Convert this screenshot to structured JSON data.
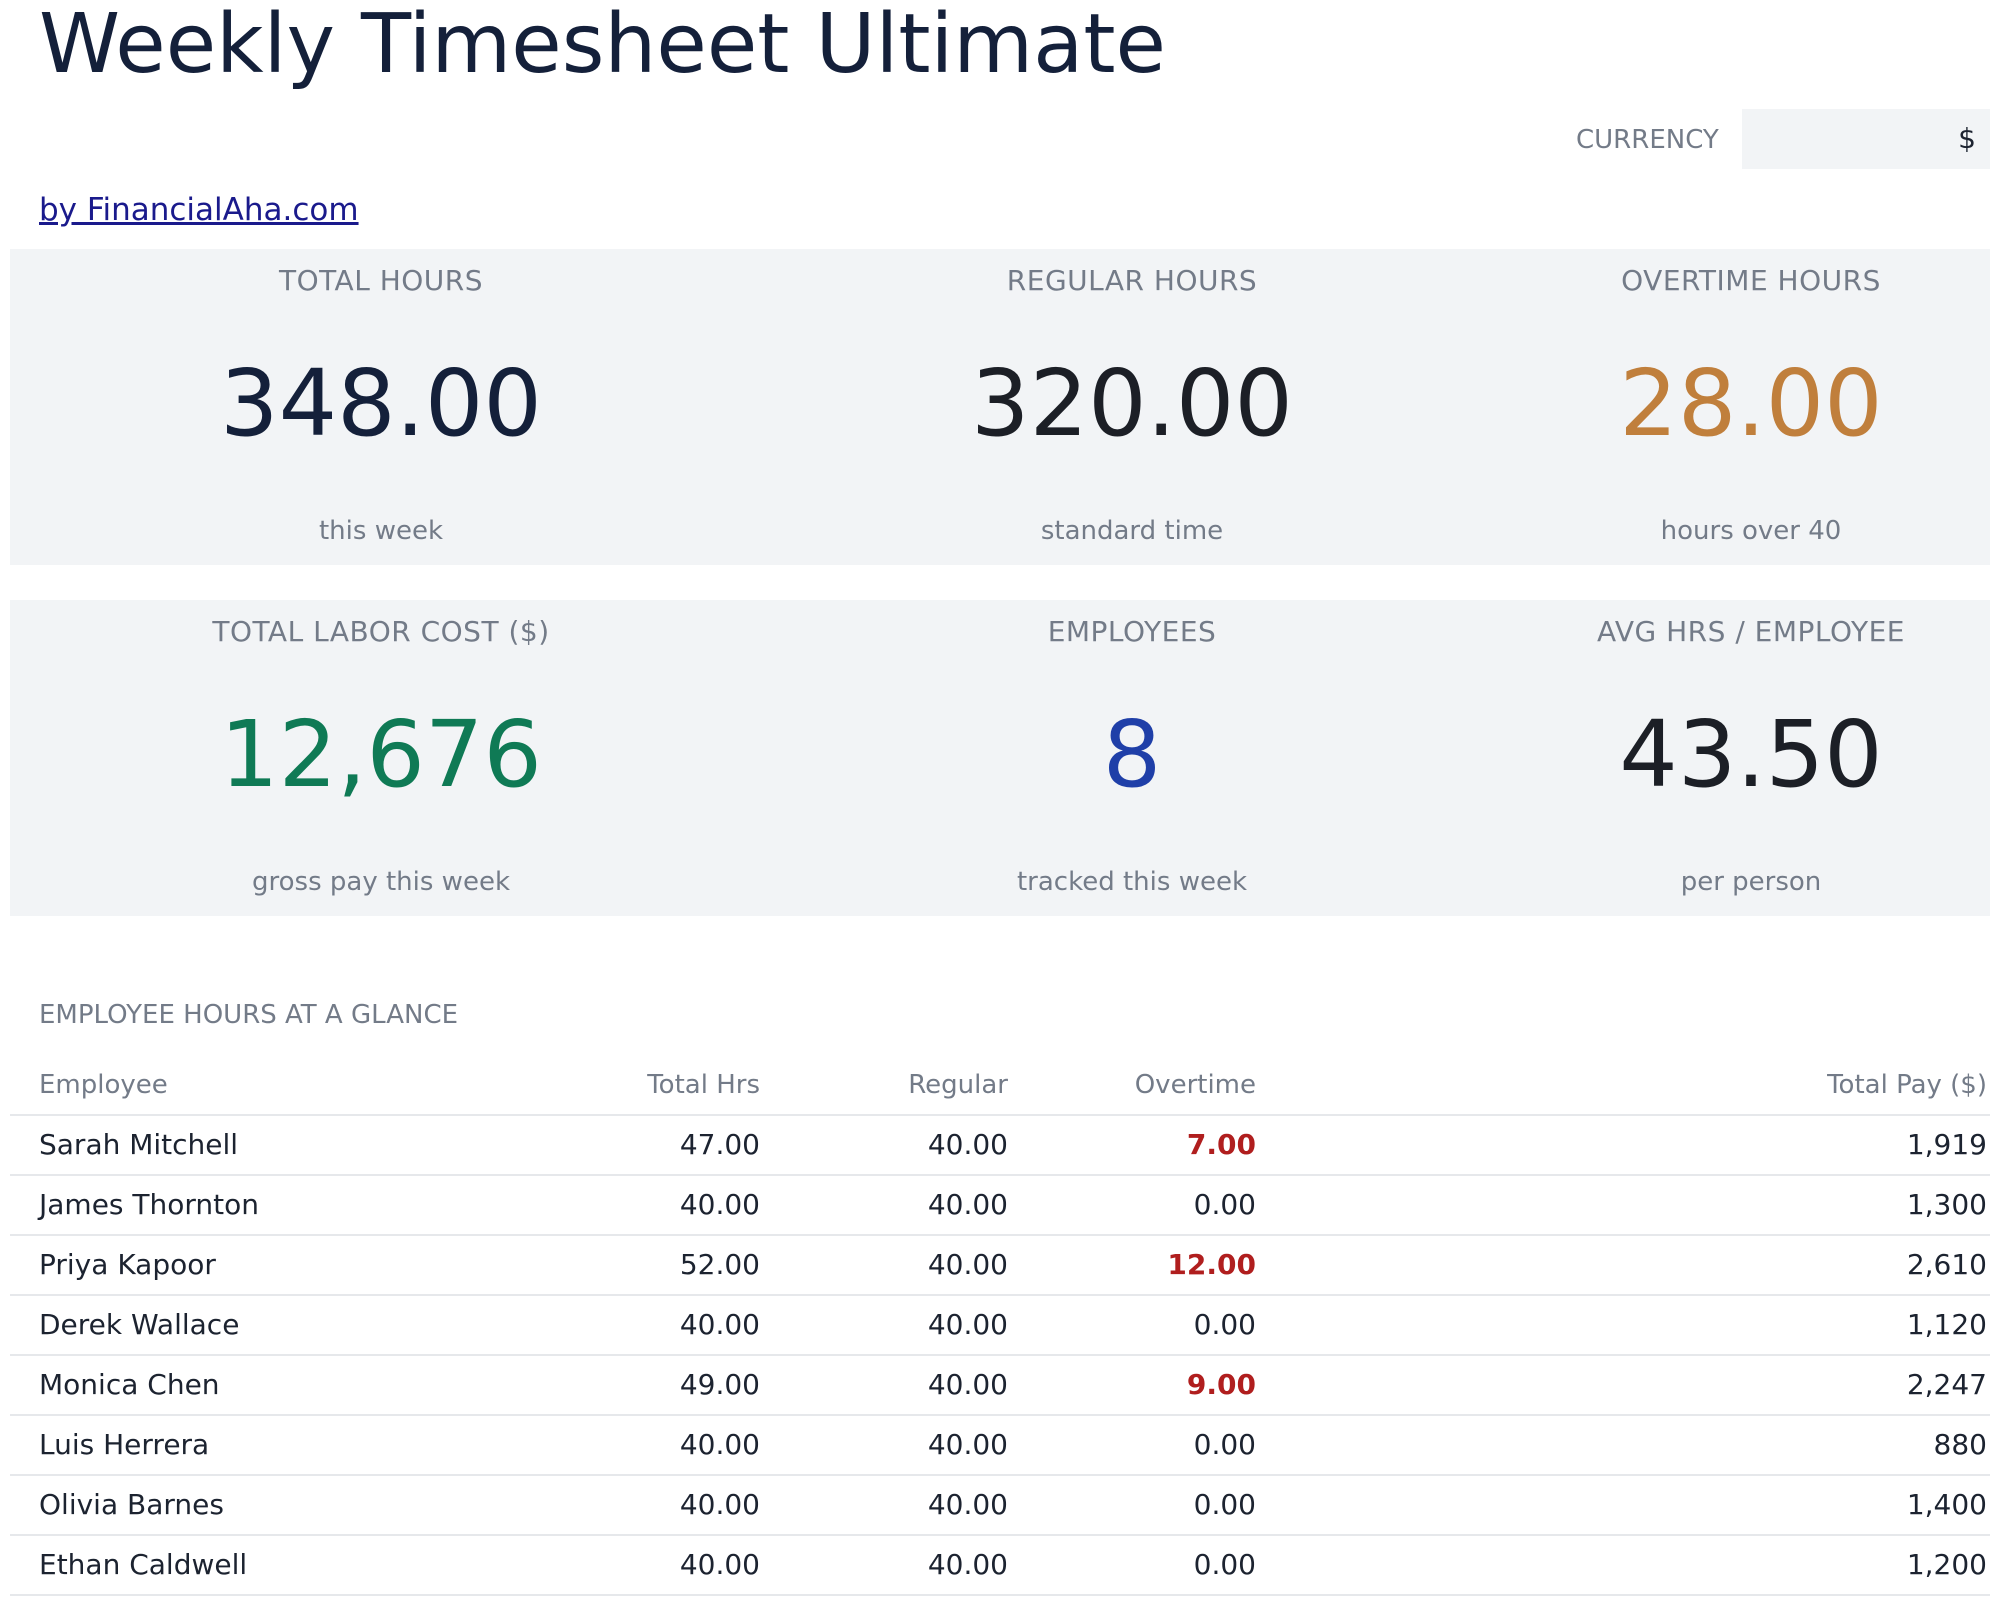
{
  "app": {
    "title": "Weekly Timesheet Ultimate",
    "byline": "by FinancialAha.com"
  },
  "currency": {
    "label": "CURRENCY",
    "value": "$"
  },
  "kpis": [
    {
      "label": "TOTAL HOURS",
      "value": "348.00",
      "sub": "this week",
      "color": "#14203a"
    },
    {
      "label": "REGULAR HOURS",
      "value": "320.00",
      "sub": "standard time",
      "color": "#1c1f26"
    },
    {
      "label": "OVERTIME HOURS",
      "value": "28.00",
      "sub": "hours over 40",
      "color": "#c07f3c"
    },
    {
      "label": "TOTAL LABOR COST ($)",
      "value": "12,676",
      "sub": "gross pay this week",
      "color": "#0f7a55"
    },
    {
      "label": "EMPLOYEES",
      "value": "8",
      "sub": "tracked this week",
      "color": "#1f3fa8"
    },
    {
      "label": "AVG HRS / EMPLOYEE",
      "value": "43.50",
      "sub": "per person",
      "color": "#1c1f26"
    }
  ],
  "table": {
    "title": "EMPLOYEE HOURS AT A GLANCE",
    "headers": {
      "name": "Employee",
      "total": "Total Hrs",
      "regular": "Regular",
      "overtime": "Overtime",
      "pay": "Total Pay ($)"
    },
    "rows": [
      {
        "name": "Sarah Mitchell",
        "total": "47.00",
        "regular": "40.00",
        "overtime": "7.00",
        "pay": "1,919"
      },
      {
        "name": "James Thornton",
        "total": "40.00",
        "regular": "40.00",
        "overtime": "0.00",
        "pay": "1,300"
      },
      {
        "name": "Priya Kapoor",
        "total": "52.00",
        "regular": "40.00",
        "overtime": "12.00",
        "pay": "2,610"
      },
      {
        "name": "Derek Wallace",
        "total": "40.00",
        "regular": "40.00",
        "overtime": "0.00",
        "pay": "1,120"
      },
      {
        "name": "Monica Chen",
        "total": "49.00",
        "regular": "40.00",
        "overtime": "9.00",
        "pay": "2,247"
      },
      {
        "name": "Luis Herrera",
        "total": "40.00",
        "regular": "40.00",
        "overtime": "0.00",
        "pay": "880"
      },
      {
        "name": "Olivia Barnes",
        "total": "40.00",
        "regular": "40.00",
        "overtime": "0.00",
        "pay": "1,400"
      },
      {
        "name": "Ethan Caldwell",
        "total": "40.00",
        "regular": "40.00",
        "overtime": "0.00",
        "pay": "1,200"
      }
    ]
  },
  "colors": {
    "overtime_highlight": "#b01e1e",
    "panel_bg": "#f2f4f6",
    "muted_text": "#737b88",
    "link": "#1a1a8c"
  }
}
